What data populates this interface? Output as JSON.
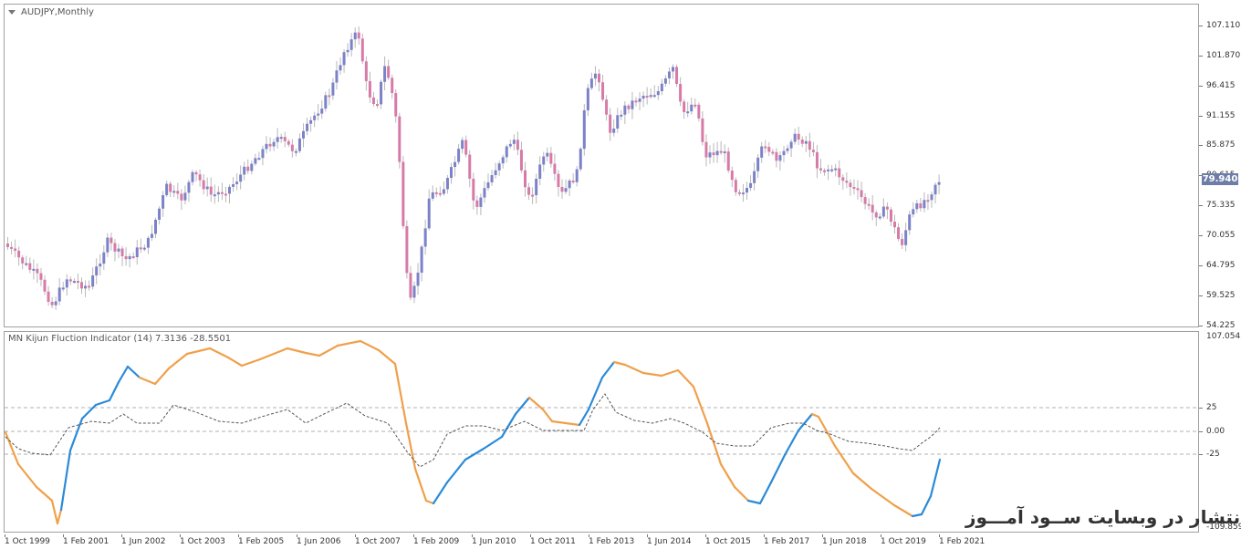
{
  "main_chart": {
    "title": "AUDJPY,Monthly",
    "current_price": "79.940",
    "price_labels": [
      "107.110",
      "101.870",
      "96.415",
      "91.155",
      "85.875",
      "80.615",
      "75.335",
      "70.055",
      "64.795",
      "59.525",
      "54.225"
    ],
    "colors": {
      "bull": "#7b82c8",
      "bear": "#d77aa7",
      "current_price_bg": "#6e7da7"
    }
  },
  "indicator": {
    "title": "MN Kijun Fluction Indicator (14) 7.3136 -28.5501",
    "scale_labels": [
      "107.0543",
      "25",
      "0.00",
      "-25",
      "-109.859"
    ],
    "colors": {
      "up": "#2b8ad8",
      "down": "#f0a04b",
      "signal": "#555555",
      "levels": "#b0b0b0"
    }
  },
  "time_axis": [
    "1 Oct 1999",
    "1 Feb 2001",
    "1 Jun 2002",
    "1 Oct 2003",
    "1 Feb 2005",
    "1 Jun 2006",
    "1 Oct 2007",
    "1 Feb 2009",
    "1 Jun 2010",
    "1 Oct 2011",
    "1 Feb 2013",
    "1 Jun 2014",
    "1 Oct 2015",
    "1 Feb 2017",
    "1 Jun 2018",
    "1 Oct 2019",
    "1 Feb 2021"
  ],
  "watermark": "انتشار در وبسایت ســود آمـــوز"
}
